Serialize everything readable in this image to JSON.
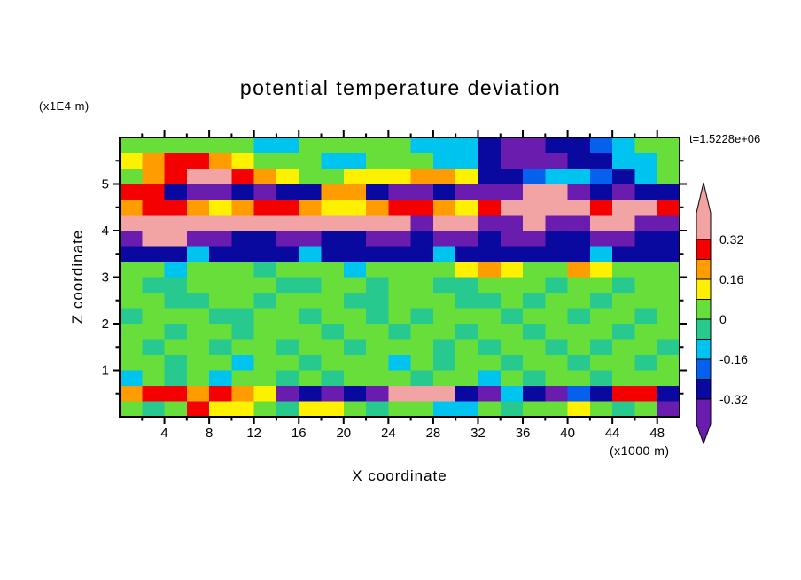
{
  "chart_data": {
    "type": "heatmap",
    "title": "potential temperature deviation",
    "xlabel": "X coordinate",
    "ylabel": "Z coordinate",
    "x_unit": "(x1000 m)",
    "y_unit": "(x1E4 m)",
    "time_label": "t=1.5228e+06",
    "x_range": [
      0,
      50
    ],
    "y_range": [
      0,
      6
    ],
    "x_major_ticks": [
      4,
      8,
      12,
      16,
      20,
      24,
      28,
      32,
      36,
      40,
      44,
      48
    ],
    "x_minor_step": 2,
    "y_major_ticks": [
      1,
      2,
      3,
      4,
      5
    ],
    "y_minor_step": 0.5,
    "grid_on": false,
    "legend_position": "right",
    "colorbar": {
      "orientation": "vertical",
      "contour_interval": 0.08,
      "range": [
        -0.32,
        0.32
      ],
      "tick_labels": [
        "0.32",
        "0.16",
        "0",
        "-0.16",
        "-0.32"
      ],
      "tick_values": [
        0.32,
        0.16,
        0,
        -0.16,
        -0.32
      ],
      "segment_colors_bottom_to_top": [
        "#0909A0",
        "#0560EE",
        "#00C4F0",
        "#27C98F",
        "#67DE3A",
        "#FDF100",
        "#FF9C00",
        "#F40000"
      ],
      "under_arrow_color": "#6A1CAE",
      "over_arrow_color": "#F2A3A3"
    },
    "value_legend": {
      "P": {
        "value": 0.36,
        "color": "#F2A3A3"
      },
      "R": {
        "value": 0.28,
        "color": "#F40000"
      },
      "O": {
        "value": 0.2,
        "color": "#FF9C00"
      },
      "Y": {
        "value": 0.12,
        "color": "#FDF100"
      },
      "g": {
        "value": 0.04,
        "color": "#67DE3A"
      },
      "G": {
        "value": -0.04,
        "color": "#27C98F"
      },
      "C": {
        "value": -0.12,
        "color": "#00C4F0"
      },
      "B": {
        "value": -0.2,
        "color": "#0560EE"
      },
      "N": {
        "value": -0.28,
        "color": "#0909A0"
      },
      "V": {
        "value": -0.36,
        "color": "#6A1CAE"
      }
    },
    "grid": {
      "ncols": 25,
      "nrows": 18,
      "rows_top_to_bottom": [
        "ggggggCCgggggCCCNVVNNBCgg",
        "YORROYgggCCgggCCNVVVNNCCg",
        "gORPPROYggYYYOOYNNBCCBNCg",
        "RRNVVNVNNOONVVNVVVPPVNVNN",
        "ORROYORROYYORROYRPPPPRPPR",
        "PPPPPPPPPPPPPVPPVVPVVPPVV",
        "VPPVVNNVVNNVVNVVNVVNNVVNN",
        "NNNCNNNNCNNNNNCNNNNNNCNNN",
        "ggCgggGgggCggggYOYggOYggg",
        "gGGggggGGggGggGGgggGggGgg",
        "ggGGggGgggGGgggGGgGggGggg",
        "GgggGGggGggGgGgggGggGggGg",
        "ggGggGgggGggGggGggGgggGgg",
        "gGggGggGggGgggGgGggGgGggG",
        "ggGggCggGgggCgGggGggGggGg",
        "CgGgCggGgGgggGggCgGggGggg",
        "ORROROYVNVNVPPPNVCNVBNRRN",
        "gGgRYYgGYYgGggCCgGggYgGgV"
      ]
    }
  }
}
